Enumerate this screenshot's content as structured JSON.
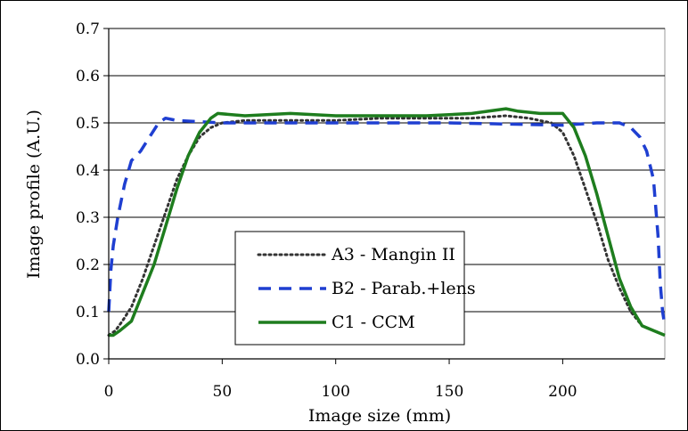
{
  "chart_data": {
    "type": "line",
    "title": "",
    "xlabel": "Image size (mm)",
    "ylabel": "Image profile (A.U.)",
    "xlim": [
      0,
      245
    ],
    "ylim": [
      0,
      0.7
    ],
    "x_ticks": [
      "0",
      "50",
      "100",
      "150",
      "200"
    ],
    "y_ticks": [
      "0.0",
      "0.1",
      "0.2",
      "0.3",
      "0.4",
      "0.5",
      "0.6",
      "0.7"
    ],
    "grid": "horizontal",
    "legend_position": "bottom-center",
    "series": [
      {
        "name": "A3 - Mangin II",
        "color": "#333333",
        "style": "dotted",
        "x": [
          0,
          3,
          6,
          10,
          15,
          20,
          25,
          30,
          35,
          40,
          45,
          50,
          60,
          80,
          100,
          120,
          140,
          160,
          175,
          185,
          195,
          200,
          205,
          210,
          215,
          220,
          225,
          230,
          235,
          240,
          245
        ],
        "y": [
          0.05,
          0.06,
          0.08,
          0.11,
          0.17,
          0.24,
          0.31,
          0.38,
          0.43,
          0.47,
          0.49,
          0.5,
          0.505,
          0.505,
          0.505,
          0.51,
          0.51,
          0.51,
          0.515,
          0.51,
          0.5,
          0.48,
          0.43,
          0.36,
          0.29,
          0.21,
          0.15,
          0.1,
          0.07,
          0.06,
          0.05
        ]
      },
      {
        "name": "B2 - Parab.+lens",
        "color": "#1f3fd1",
        "style": "dashed",
        "x": [
          0,
          1,
          2,
          4,
          7,
          10,
          14,
          18,
          22,
          25,
          30,
          50,
          100,
          150,
          200,
          215,
          225,
          230,
          234,
          237,
          240,
          242,
          243,
          244,
          245
        ],
        "y": [
          0.1,
          0.19,
          0.24,
          0.3,
          0.37,
          0.42,
          0.44,
          0.47,
          0.5,
          0.51,
          0.505,
          0.5,
          0.5,
          0.5,
          0.495,
          0.5,
          0.5,
          0.49,
          0.47,
          0.44,
          0.38,
          0.26,
          0.16,
          0.1,
          0.07
        ]
      },
      {
        "name": "C1 - CCM",
        "color": "#1e7d1e",
        "style": "solid",
        "x": [
          0,
          2,
          5,
          10,
          15,
          20,
          25,
          30,
          35,
          40,
          45,
          48,
          60,
          80,
          100,
          120,
          140,
          160,
          175,
          180,
          190,
          200,
          205,
          210,
          215,
          220,
          225,
          230,
          235,
          240,
          245
        ],
        "y": [
          0.05,
          0.05,
          0.06,
          0.08,
          0.14,
          0.2,
          0.28,
          0.36,
          0.43,
          0.48,
          0.51,
          0.52,
          0.515,
          0.52,
          0.515,
          0.515,
          0.515,
          0.52,
          0.53,
          0.525,
          0.52,
          0.52,
          0.49,
          0.43,
          0.35,
          0.26,
          0.17,
          0.11,
          0.07,
          0.06,
          0.05
        ]
      }
    ]
  }
}
